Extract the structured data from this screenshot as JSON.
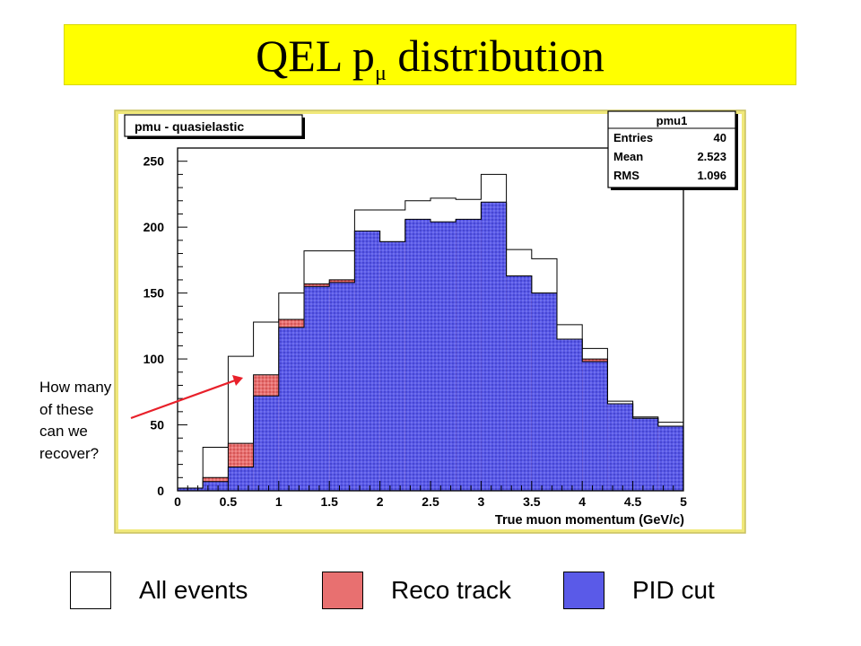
{
  "slide": {
    "title_main": "QEL p",
    "title_sub": "μ",
    "title_tail": " distribution"
  },
  "annotation": {
    "lines": [
      "How many",
      "of these",
      "can we",
      "recover?"
    ],
    "arrow_color": "#e8202a"
  },
  "legend": {
    "items": [
      {
        "label": "All events",
        "color": "#ffffff"
      },
      {
        "label": "Reco track",
        "color": "#e87070"
      },
      {
        "label": "PID cut",
        "color": "#5a5ae8"
      }
    ]
  },
  "colors": {
    "frame_background": "#f0e87a",
    "pad_background": "#ffffff",
    "reco_fill": "#e87070",
    "pid_fill": "#5a5ae8"
  },
  "chart_data": {
    "type": "bar",
    "title": "pmu - quasielastic",
    "xlabel": "True muon momentum (GeV/c)",
    "ylabel": "",
    "xlim": [
      0,
      5
    ],
    "ylim": [
      0,
      260
    ],
    "x_ticks": [
      "0",
      "0.5",
      "1",
      "1.5",
      "2",
      "2.5",
      "3",
      "3.5",
      "4",
      "4.5",
      "5"
    ],
    "y_ticks": [
      "0",
      "50",
      "100",
      "150",
      "200",
      "250"
    ],
    "bin_edges": [
      0,
      0.25,
      0.5,
      0.75,
      1.0,
      1.25,
      1.5,
      1.75,
      2.0,
      2.25,
      2.5,
      2.75,
      3.0,
      3.25,
      3.5,
      3.75,
      4.0,
      4.25,
      4.5,
      4.75,
      5.0
    ],
    "series": [
      {
        "name": "All events",
        "values": [
          2,
          33,
          102,
          128,
          150,
          182,
          182,
          213,
          213,
          220,
          222,
          221,
          240,
          183,
          176,
          126,
          108,
          68,
          56,
          52
        ]
      },
      {
        "name": "Reco track",
        "values": [
          2,
          10,
          36,
          88,
          130,
          157,
          160,
          197,
          189,
          205,
          202,
          205,
          218,
          163,
          150,
          115,
          100,
          66,
          55,
          49
        ]
      },
      {
        "name": "PID cut",
        "values": [
          2,
          7,
          18,
          72,
          124,
          155,
          158,
          197,
          189,
          206,
          204,
          206,
          219,
          163,
          150,
          115,
          98,
          66,
          55,
          49
        ]
      }
    ],
    "stats": {
      "name": "pmu1",
      "rows": [
        {
          "label": "Entries",
          "value": "40"
        },
        {
          "label": "Mean",
          "value": "2.523"
        },
        {
          "label": "RMS",
          "value": "1.096"
        }
      ]
    },
    "grid": false,
    "legend_position": "bottom"
  }
}
